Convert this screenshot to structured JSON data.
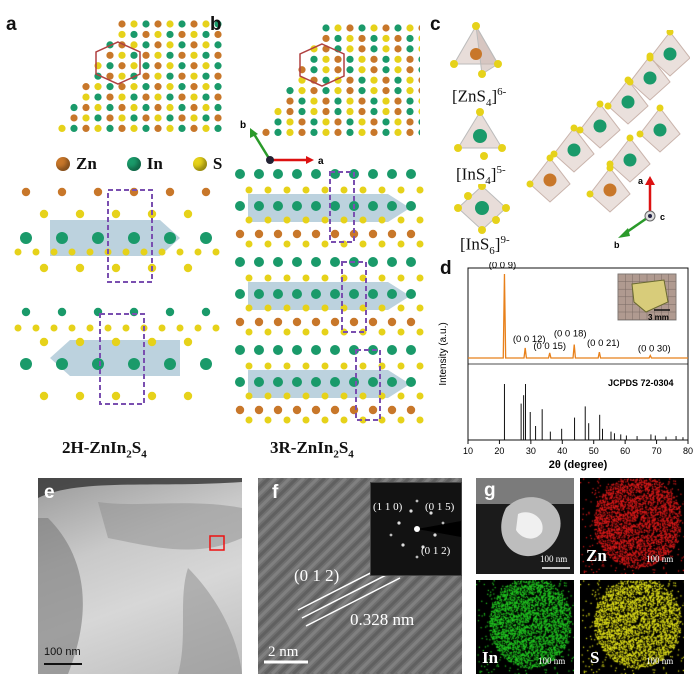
{
  "panels": {
    "a": {
      "letter": "a",
      "legend": [
        {
          "label": "Zn",
          "color": "#c8772a"
        },
        {
          "label": "In",
          "color": "#1a9a6a"
        },
        {
          "label": "S",
          "color": "#e6d21a"
        }
      ],
      "caption_main": "2H-ZnIn",
      "caption_sub1": "2",
      "caption_mid": "S",
      "caption_sub2": "4"
    },
    "b": {
      "letter": "b",
      "axis_b": "b",
      "axis_a": "a",
      "caption_main": "3R-ZnIn",
      "caption_sub1": "2",
      "caption_mid": "S",
      "caption_sub2": "4"
    },
    "c": {
      "letter": "c",
      "ions": [
        {
          "base": "[ZnS",
          "sub": "4",
          "close": "]",
          "sup": "6-"
        },
        {
          "base": "[InS",
          "sub": "4",
          "close": "]",
          "sup": "5-"
        },
        {
          "base": "[InS",
          "sub": "6",
          "close": "]",
          "sup": "9-"
        }
      ],
      "axis_a": "a",
      "axis_b": "b",
      "axis_c": "c"
    },
    "d": {
      "letter": "d",
      "inset_scale": "3 mm",
      "reference_label": "JCPDS 72-0304",
      "colors": {
        "measured": "#e8801a",
        "reference": "#111111"
      }
    },
    "e": {
      "letter": "e",
      "scale": "100 nm"
    },
    "f": {
      "letter": "f",
      "scale": "2 nm",
      "plane": "(0 1 2)",
      "spacing": "0.328 nm",
      "saed": [
        "(1 1 0)",
        "(0 1 5)",
        "(0 1 2)"
      ]
    },
    "g": {
      "letter": "g",
      "scale": "100 nm",
      "maps": [
        {
          "label": "",
          "color": "#ffffff"
        },
        {
          "label": "Zn",
          "color": "#e11a1a"
        },
        {
          "label": "In",
          "color": "#22cc22"
        },
        {
          "label": "S",
          "color": "#e6e61a"
        }
      ]
    }
  },
  "chart_data": {
    "type": "line",
    "xlabel": "2θ (degree)",
    "ylabel": "Intensity (a.u.)",
    "xlim": [
      10,
      80
    ],
    "xticks": [
      10,
      20,
      30,
      40,
      50,
      60,
      70,
      80
    ],
    "series": [
      {
        "name": "",
        "peaks": [
          {
            "x": 21.6,
            "y": 1.0,
            "label": "(0 0 9)"
          },
          {
            "x": 28.2,
            "y": 0.12,
            "label": "(0 0 12)"
          },
          {
            "x": 36.0,
            "y": 0.06,
            "label": "(0 0 15)"
          },
          {
            "x": 43.8,
            "y": 0.16,
            "label": "(0 0 18)"
          },
          {
            "x": 51.8,
            "y": 0.07,
            "label": "(0 0 21)"
          },
          {
            "x": 68.0,
            "y": 0.03,
            "label": "(0 0 30)"
          }
        ]
      },
      {
        "name": "JCPDS 72-0304",
        "sticks": [
          {
            "x": 21.6,
            "y": 1.0
          },
          {
            "x": 26.9,
            "y": 0.65
          },
          {
            "x": 27.7,
            "y": 0.8
          },
          {
            "x": 28.3,
            "y": 1.0
          },
          {
            "x": 29.8,
            "y": 0.5
          },
          {
            "x": 31.5,
            "y": 0.25
          },
          {
            "x": 33.6,
            "y": 0.55
          },
          {
            "x": 36.2,
            "y": 0.15
          },
          {
            "x": 39.8,
            "y": 0.2
          },
          {
            "x": 43.9,
            "y": 0.4
          },
          {
            "x": 47.3,
            "y": 0.6
          },
          {
            "x": 48.4,
            "y": 0.3
          },
          {
            "x": 51.9,
            "y": 0.45
          },
          {
            "x": 52.8,
            "y": 0.2
          },
          {
            "x": 55.5,
            "y": 0.15
          },
          {
            "x": 56.6,
            "y": 0.12
          },
          {
            "x": 58.6,
            "y": 0.1
          },
          {
            "x": 60.4,
            "y": 0.08
          },
          {
            "x": 63.8,
            "y": 0.07
          },
          {
            "x": 68.2,
            "y": 0.1
          },
          {
            "x": 69.6,
            "y": 0.08
          },
          {
            "x": 73.0,
            "y": 0.06
          },
          {
            "x": 76.2,
            "y": 0.07
          },
          {
            "x": 78.4,
            "y": 0.05
          }
        ]
      }
    ]
  }
}
